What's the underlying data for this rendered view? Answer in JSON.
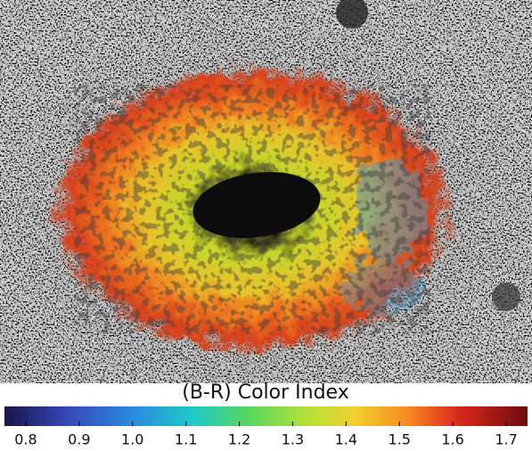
{
  "colorbar": {
    "label": "(B-R) Color Index",
    "lim": [
      0.76,
      1.74
    ],
    "ticks": [
      0.8,
      0.9,
      {
        "value": 1,
        "label": "1.0"
      },
      1.1,
      1.2,
      1.3,
      1.4,
      1.5,
      1.6,
      1.7
    ]
  }
}
